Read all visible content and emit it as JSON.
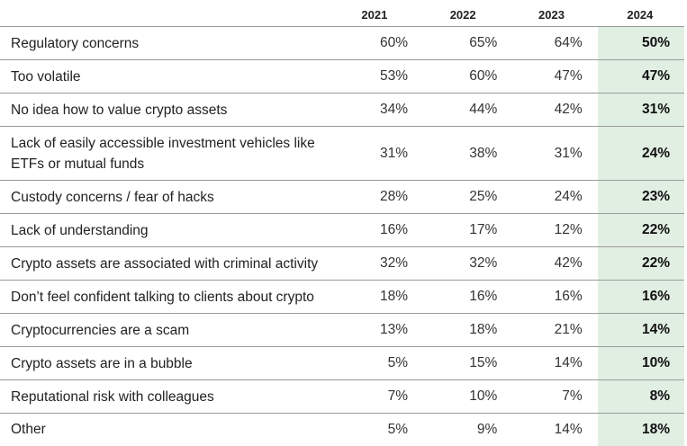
{
  "chart_data": {
    "type": "table",
    "columns": [
      "2021",
      "2022",
      "2023",
      "2024"
    ],
    "highlight_column": "2024",
    "rows": [
      {
        "label": "Regulatory concerns",
        "values": [
          "60%",
          "65%",
          "64%",
          "50%"
        ]
      },
      {
        "label": "Too volatile",
        "values": [
          "53%",
          "60%",
          "47%",
          "47%"
        ]
      },
      {
        "label": "No idea how to value crypto assets",
        "values": [
          "34%",
          "44%",
          "42%",
          "31%"
        ]
      },
      {
        "label": "Lack of easily accessible investment vehicles like ETFs or mutual funds",
        "values": [
          "31%",
          "38%",
          "31%",
          "24%"
        ]
      },
      {
        "label": "Custody concerns / fear of hacks",
        "values": [
          "28%",
          "25%",
          "24%",
          "23%"
        ]
      },
      {
        "label": "Lack of understanding",
        "values": [
          "16%",
          "17%",
          "12%",
          "22%"
        ]
      },
      {
        "label": "Crypto assets are associated with criminal activity",
        "values": [
          "32%",
          "32%",
          "42%",
          "22%"
        ]
      },
      {
        "label": "Don’t feel confident talking to clients about crypto",
        "values": [
          "18%",
          "16%",
          "16%",
          "16%"
        ]
      },
      {
        "label": "Cryptocurrencies are a scam",
        "values": [
          "13%",
          "18%",
          "21%",
          "14%"
        ]
      },
      {
        "label": "Crypto assets are in a bubble",
        "values": [
          "5%",
          "15%",
          "14%",
          "10%"
        ]
      },
      {
        "label": "Reputational risk with colleagues",
        "values": [
          "7%",
          "10%",
          "7%",
          "8%"
        ]
      },
      {
        "label": "Other",
        "values": [
          "5%",
          "9%",
          "14%",
          "18%"
        ]
      }
    ]
  },
  "colors": {
    "highlight_bg": "#e1efe3",
    "rule": "#9a9a9a",
    "text": "#222222"
  }
}
